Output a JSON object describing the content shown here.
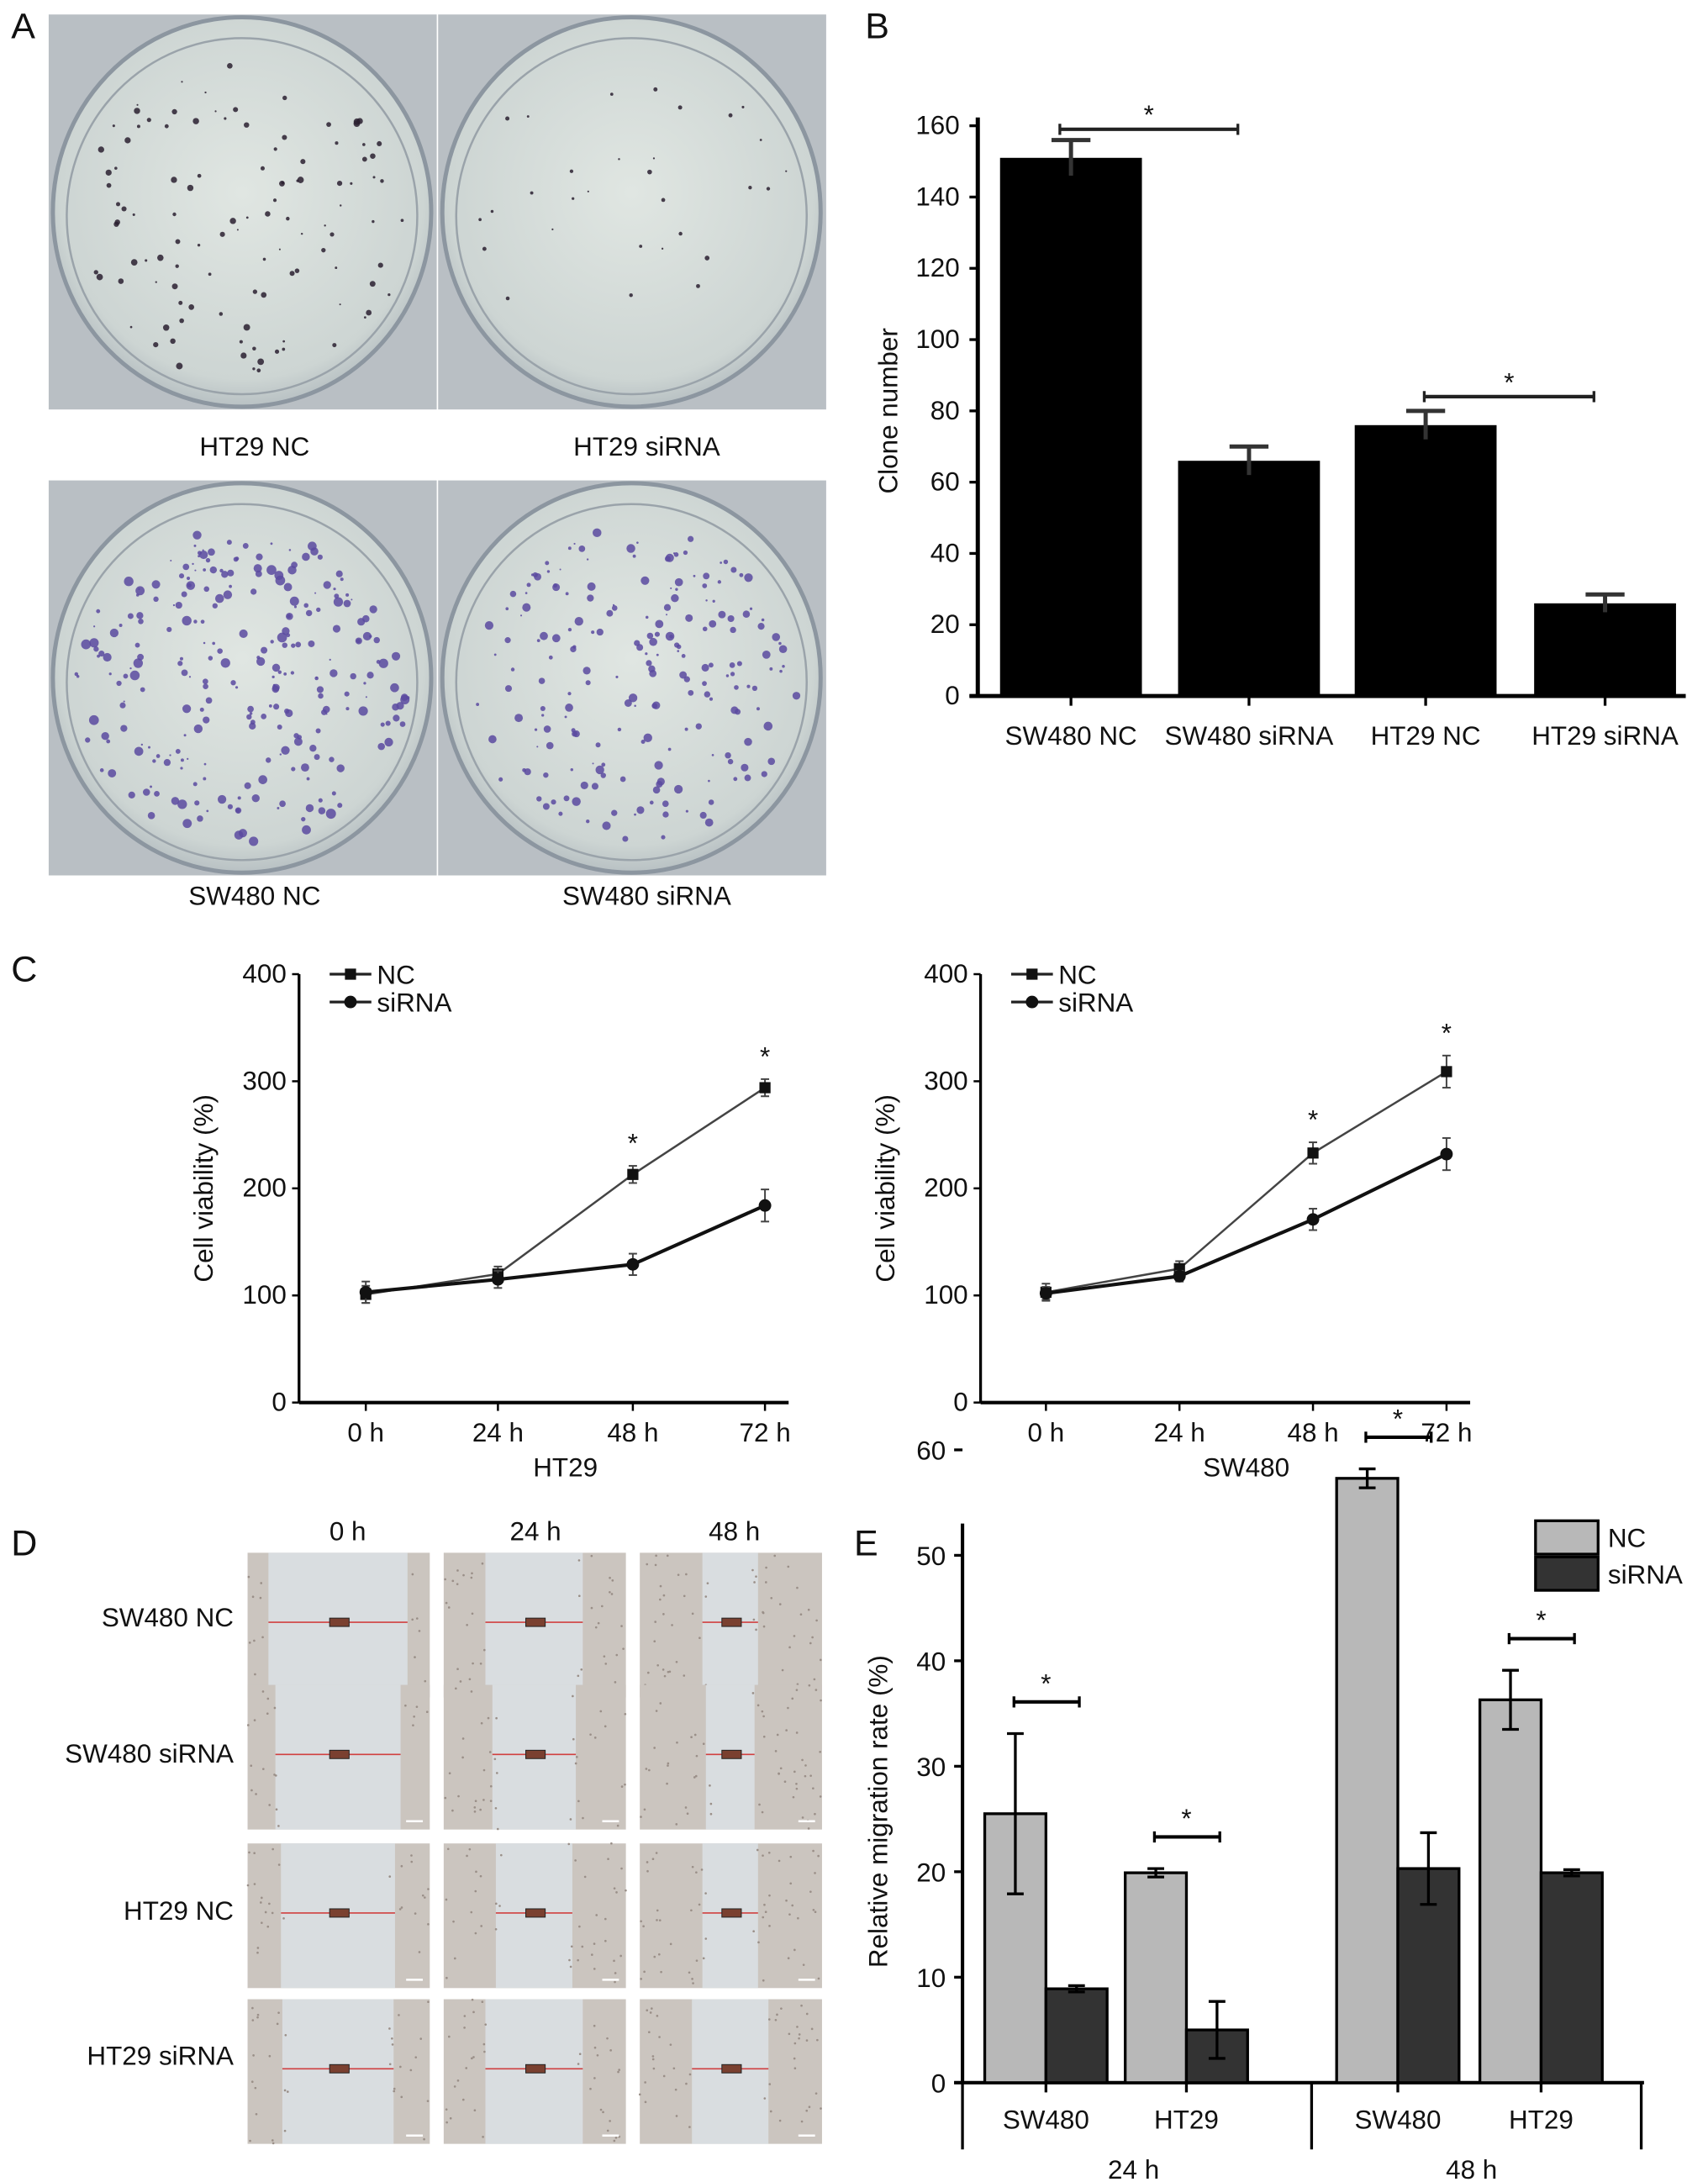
{
  "panels": {
    "A": "A",
    "B": "B",
    "C": "C",
    "D": "D",
    "E": "E"
  },
  "panel_a": {
    "captions": [
      "HT29 NC",
      "HT29 siRNA",
      "SW480 NC",
      "SW480 siRNA"
    ]
  },
  "panel_d": {
    "columns": [
      "0 h",
      "24 h",
      "48 h"
    ],
    "rows": [
      "SW480 NC",
      "SW480 siRNA",
      "HT29 NC",
      "HT29 siRNA"
    ]
  },
  "colors": {
    "bar_b": "#000000",
    "nc": "#b8b8b8",
    "sirna": "#333333",
    "line": "#222222",
    "colony_ht29": "#2a2030",
    "colony_sw480": "#5a4aa0",
    "dish_bg": "#cfd6d4",
    "scratch_line": "#d04040"
  },
  "chart_data": [
    {
      "id": "B",
      "type": "bar",
      "ylabel": "Clone number",
      "ylim": [
        0,
        160
      ],
      "yticks": [
        0,
        20,
        40,
        60,
        80,
        100,
        120,
        140,
        160
      ],
      "categories": [
        "SW480 NC",
        "SW480 siRNA",
        "HT29 NC",
        "HT29 siRNA"
      ],
      "values": [
        151,
        66,
        76,
        26
      ],
      "errors": [
        5,
        4,
        4,
        2.5
      ],
      "significance": [
        {
          "between": [
            "SW480 NC",
            "SW480 siRNA"
          ],
          "label": "*"
        },
        {
          "between": [
            "HT29 NC",
            "HT29 siRNA"
          ],
          "label": "*"
        }
      ]
    },
    {
      "id": "C-HT29",
      "type": "line",
      "xlabel": "HT29",
      "ylabel": "Cell viability (%)",
      "ylim": [
        0,
        400
      ],
      "yticks": [
        0,
        100,
        200,
        300,
        400
      ],
      "categories": [
        "0 h",
        "24 h",
        "48 h",
        "72 h"
      ],
      "series": [
        {
          "name": "NC",
          "marker": "square",
          "values": [
            101,
            120,
            213,
            294
          ],
          "errors": [
            8,
            7,
            8,
            8
          ]
        },
        {
          "name": "siRNA",
          "marker": "circle",
          "values": [
            103,
            115,
            129,
            184
          ],
          "errors": [
            10,
            8,
            10,
            15
          ]
        }
      ],
      "significance": [
        {
          "at": "48 h",
          "label": "*"
        },
        {
          "at": "72 h",
          "label": "*"
        }
      ],
      "legend": "top-left"
    },
    {
      "id": "C-SW480",
      "type": "line",
      "xlabel": "SW480",
      "ylabel": "Cell viability (%)",
      "ylim": [
        0,
        400
      ],
      "yticks": [
        0,
        100,
        200,
        300,
        400
      ],
      "categories": [
        "0 h",
        "24 h",
        "48 h",
        "72 h"
      ],
      "series": [
        {
          "name": "NC",
          "marker": "square",
          "values": [
            103,
            125,
            233,
            309
          ],
          "errors": [
            8,
            7,
            10,
            15
          ]
        },
        {
          "name": "siRNA",
          "marker": "circle",
          "values": [
            102,
            118,
            171,
            232
          ],
          "errors": [
            6,
            5,
            10,
            15
          ]
        }
      ],
      "significance": [
        {
          "at": "48 h",
          "label": "*"
        },
        {
          "at": "72 h",
          "label": "*"
        }
      ],
      "legend": "top-left"
    },
    {
      "id": "E",
      "type": "bar",
      "ylabel": "Relative migration rate (%)",
      "ylim": [
        0,
        65
      ],
      "yticks": [
        0,
        10,
        20,
        30,
        40,
        50,
        60
      ],
      "categories": [
        "SW480",
        "HT29",
        "SW480",
        "HT29"
      ],
      "groups": [
        "24 h",
        "48 h"
      ],
      "series": [
        {
          "name": "NC",
          "values": [
            25.5,
            19.9,
            57.3,
            36.3
          ],
          "errors": [
            7.6,
            0.4,
            0.9,
            2.8
          ]
        },
        {
          "name": "siRNA",
          "values": [
            8.9,
            5.0,
            20.3,
            19.9
          ],
          "errors": [
            0.3,
            2.7,
            3.4,
            0.3
          ]
        }
      ],
      "significance": [
        "*",
        "*",
        "*",
        "*"
      ],
      "legend": "top-right"
    }
  ]
}
